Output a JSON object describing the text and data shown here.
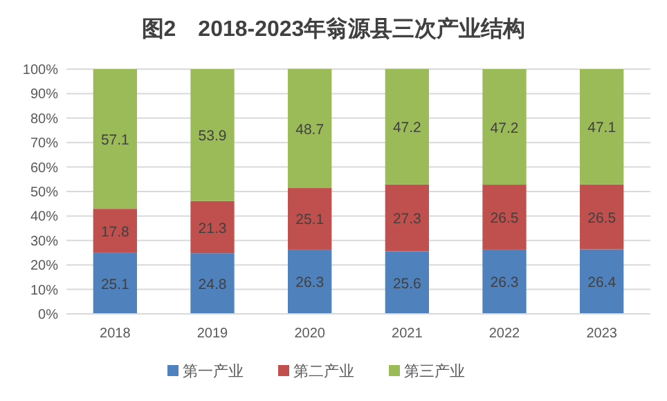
{
  "chart_data": {
    "type": "bar",
    "title": "图2　2018-2023年翁源县三次产业结构",
    "stacked": true,
    "categories": [
      "2018",
      "2019",
      "2020",
      "2021",
      "2022",
      "2023"
    ],
    "series": [
      {
        "name": "第一产业",
        "color": "#4f81bd",
        "values": [
          25.1,
          24.8,
          26.3,
          25.6,
          26.3,
          26.4
        ]
      },
      {
        "name": "第二产业",
        "color": "#c0504d",
        "values": [
          17.8,
          21.3,
          25.1,
          27.3,
          26.5,
          26.5
        ]
      },
      {
        "name": "第三产业",
        "color": "#9bbb59",
        "values": [
          57.1,
          53.9,
          48.7,
          47.2,
          47.2,
          47.1
        ]
      }
    ],
    "ylim": [
      0,
      100
    ],
    "yticks": [
      {
        "value": 0,
        "label": "0%"
      },
      {
        "value": 10,
        "label": "10%"
      },
      {
        "value": 20,
        "label": "20%"
      },
      {
        "value": 30,
        "label": "30%"
      },
      {
        "value": 40,
        "label": "40%"
      },
      {
        "value": 50,
        "label": "50%"
      },
      {
        "value": 60,
        "label": "60%"
      },
      {
        "value": 70,
        "label": "70%"
      },
      {
        "value": 80,
        "label": "80%"
      },
      {
        "value": 90,
        "label": "90%"
      },
      {
        "value": 100,
        "label": "100%"
      }
    ],
    "grid": "y",
    "legend": "bottom",
    "data_labels": true
  }
}
